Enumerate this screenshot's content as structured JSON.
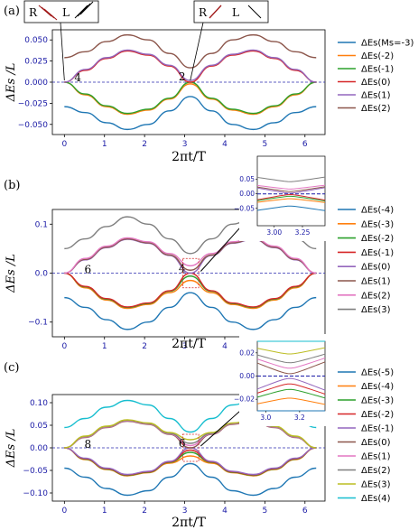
{
  "chart_data": [
    {
      "type": "line",
      "panel_label": "(a)",
      "xlabel": "2πt/T",
      "ylabel": "ΔEs /L",
      "xlim": [
        -0.3,
        6.5
      ],
      "ylim": [
        -0.062,
        0.062
      ],
      "xticks": [
        "0",
        "1",
        "2",
        "3",
        "4",
        "5",
        "6"
      ],
      "yticks": [
        "0.050",
        "0.025",
        "0.000",
        "−0.025",
        "−0.050"
      ],
      "ytick_values": [
        0.05,
        0.025,
        0,
        -0.025,
        -0.05
      ],
      "series": [
        {
          "name": "ΔEs(Ms=-3)",
          "color": "#1f77b4",
          "x": [
            0,
            0.52,
            1.05,
            1.57,
            2.09,
            2.62,
            3.14,
            3.67,
            4.19,
            4.71,
            5.24,
            5.76,
            6.28
          ],
          "values": [
            -0.029,
            -0.036,
            -0.048,
            -0.056,
            -0.05,
            -0.034,
            -0.017,
            -0.034,
            -0.05,
            -0.056,
            -0.048,
            -0.036,
            -0.029
          ]
        },
        {
          "name": "ΔEs(-2)",
          "color": "#ff7f0e",
          "x": [
            0,
            0.52,
            1.05,
            1.57,
            2.09,
            2.62,
            3.14,
            3.67,
            4.19,
            4.71,
            5.24,
            5.76,
            6.28
          ],
          "values": [
            0,
            -0.015,
            -0.029,
            -0.038,
            -0.033,
            -0.02,
            -0.002,
            -0.02,
            -0.033,
            -0.038,
            -0.029,
            -0.015,
            0
          ]
        },
        {
          "name": "ΔEs(-1)",
          "color": "#2ca02c",
          "x": [
            0,
            0.52,
            1.05,
            1.57,
            2.09,
            2.62,
            3.14,
            3.67,
            4.19,
            4.71,
            5.24,
            5.76,
            6.28
          ],
          "values": [
            0,
            -0.014,
            -0.028,
            -0.037,
            -0.032,
            -0.019,
            0,
            -0.019,
            -0.032,
            -0.037,
            -0.028,
            -0.014,
            0
          ]
        },
        {
          "name": "ΔEs(0)",
          "color": "#d62728",
          "x": [
            0,
            0.52,
            1.05,
            1.57,
            2.09,
            2.62,
            3.14,
            3.67,
            4.19,
            4.71,
            5.24,
            5.76,
            6.28
          ],
          "values": [
            0,
            0.014,
            0.028,
            0.037,
            0.032,
            0.019,
            0,
            0.019,
            0.032,
            0.037,
            0.028,
            0.014,
            0
          ]
        },
        {
          "name": "ΔEs(1)",
          "color": "#9467bd",
          "x": [
            0,
            0.52,
            1.05,
            1.57,
            2.09,
            2.62,
            3.14,
            3.67,
            4.19,
            4.71,
            5.24,
            5.76,
            6.28
          ],
          "values": [
            0,
            0.015,
            0.029,
            0.038,
            0.033,
            0.02,
            0.002,
            0.02,
            0.033,
            0.038,
            0.029,
            0.015,
            0
          ]
        },
        {
          "name": "ΔEs(2)",
          "color": "#8c564b",
          "x": [
            0,
            0.52,
            1.05,
            1.57,
            2.09,
            2.62,
            3.14,
            3.67,
            4.19,
            4.71,
            5.24,
            5.76,
            6.28
          ],
          "values": [
            0.029,
            0.036,
            0.048,
            0.056,
            0.05,
            0.034,
            0.017,
            0.034,
            0.05,
            0.056,
            0.048,
            0.036,
            0.029
          ]
        }
      ],
      "annotations": [
        {
          "text": "4",
          "x": 0.25,
          "y": 0.002
        },
        {
          "text": "2",
          "x": 2.85,
          "y": 0.003
        }
      ],
      "insets": [
        {
          "text_left": "R",
          "text_right": "L"
        },
        {
          "text_left": "R",
          "text_right": "L"
        }
      ]
    },
    {
      "type": "line",
      "panel_label": "(b)",
      "xlabel": "2πt/T",
      "ylabel": "ΔEs /L",
      "xlim": [
        -0.3,
        6.5
      ],
      "ylim": [
        -0.13,
        0.13
      ],
      "xticks": [
        "0",
        "1",
        "2",
        "3",
        "4",
        "5",
        "6"
      ],
      "yticks": [
        "0.1",
        "0.0",
        "−0.1"
      ],
      "ytick_values": [
        0.1,
        0,
        -0.1
      ],
      "series": [
        {
          "name": "ΔEs(-4)",
          "color": "#1f77b4",
          "x": [
            0,
            0.52,
            1.05,
            1.57,
            2.09,
            2.62,
            3.14,
            3.67,
            4.19,
            4.71,
            5.24,
            5.76,
            6.28
          ],
          "values": [
            -0.05,
            -0.07,
            -0.095,
            -0.115,
            -0.1,
            -0.07,
            -0.04,
            -0.07,
            -0.1,
            -0.115,
            -0.095,
            -0.07,
            -0.05
          ]
        },
        {
          "name": "ΔEs(-3)",
          "color": "#ff7f0e",
          "x": [
            0,
            0.52,
            1.05,
            1.57,
            2.09,
            2.62,
            3.14,
            3.67,
            4.19,
            4.71,
            5.24,
            5.76,
            6.28
          ],
          "values": [
            0,
            -0.03,
            -0.055,
            -0.072,
            -0.064,
            -0.04,
            -0.015,
            -0.04,
            -0.064,
            -0.072,
            -0.055,
            -0.03,
            0
          ]
        },
        {
          "name": "ΔEs(-2)",
          "color": "#2ca02c",
          "x": [
            0,
            0.52,
            1.05,
            1.57,
            2.09,
            2.62,
            3.14,
            3.67,
            4.19,
            4.71,
            5.24,
            5.76,
            6.28
          ],
          "values": [
            0,
            -0.028,
            -0.053,
            -0.07,
            -0.062,
            -0.037,
            -0.006,
            -0.037,
            -0.062,
            -0.07,
            -0.053,
            -0.028,
            0
          ]
        },
        {
          "name": "ΔEs(-1)",
          "color": "#d62728",
          "x": [
            0,
            0.52,
            1.05,
            1.57,
            2.09,
            2.62,
            3.14,
            3.67,
            4.19,
            4.71,
            5.24,
            5.76,
            6.28
          ],
          "values": [
            0,
            -0.027,
            -0.052,
            -0.069,
            -0.061,
            -0.036,
            0,
            -0.036,
            -0.061,
            -0.069,
            -0.052,
            -0.027,
            0
          ]
        },
        {
          "name": "ΔEs(0)",
          "color": "#9467bd",
          "x": [
            0,
            0.52,
            1.05,
            1.57,
            2.09,
            2.62,
            3.14,
            3.67,
            4.19,
            4.71,
            5.24,
            5.76,
            6.28
          ],
          "values": [
            0,
            0.027,
            0.052,
            0.069,
            0.061,
            0.036,
            0,
            0.036,
            0.061,
            0.069,
            0.052,
            0.027,
            0
          ]
        },
        {
          "name": "ΔEs(1)",
          "color": "#8c564b",
          "x": [
            0,
            0.52,
            1.05,
            1.57,
            2.09,
            2.62,
            3.14,
            3.67,
            4.19,
            4.71,
            5.24,
            5.76,
            6.28
          ],
          "values": [
            0,
            0.028,
            0.053,
            0.07,
            0.062,
            0.037,
            0.006,
            0.037,
            0.062,
            0.07,
            0.053,
            0.028,
            0
          ]
        },
        {
          "name": "ΔEs(2)",
          "color": "#e377c2",
          "x": [
            0,
            0.52,
            1.05,
            1.57,
            2.09,
            2.62,
            3.14,
            3.67,
            4.19,
            4.71,
            5.24,
            5.76,
            6.28
          ],
          "values": [
            0,
            0.03,
            0.055,
            0.072,
            0.064,
            0.04,
            0.015,
            0.04,
            0.064,
            0.072,
            0.055,
            0.03,
            0
          ]
        },
        {
          "name": "ΔEs(3)",
          "color": "#7f7f7f",
          "x": [
            0,
            0.52,
            1.05,
            1.57,
            2.09,
            2.62,
            3.14,
            3.67,
            4.19,
            4.71,
            5.24,
            5.76,
            6.28
          ],
          "values": [
            0.05,
            0.07,
            0.095,
            0.115,
            0.1,
            0.07,
            0.04,
            0.07,
            0.1,
            0.115,
            0.095,
            0.07,
            0.05
          ]
        }
      ],
      "annotations": [
        {
          "text": "6",
          "x": 0.5,
          "y": 0.002
        },
        {
          "text": "4",
          "x": 2.85,
          "y": 0.004
        }
      ],
      "inset": {
        "xticks": [
          "3.00",
          "3.25"
        ],
        "yticks": [
          "0.05",
          "0.00",
          "−0.05"
        ]
      }
    },
    {
      "type": "line",
      "panel_label": "(c)",
      "xlabel": "2πt/T",
      "ylabel": "ΔEs /L",
      "xlim": [
        -0.3,
        6.5
      ],
      "ylim": [
        -0.118,
        0.118
      ],
      "xticks": [
        "0",
        "1",
        "2",
        "3",
        "4",
        "5",
        "6"
      ],
      "yticks": [
        "0.10",
        "0.05",
        "0.00",
        "−0.05",
        "−0.10"
      ],
      "ytick_values": [
        0.1,
        0.05,
        0,
        -0.05,
        -0.1
      ],
      "series": [
        {
          "name": "ΔEs(-5)",
          "color": "#1f77b4",
          "x": [
            0,
            0.52,
            1.05,
            1.57,
            2.09,
            2.62,
            3.14,
            3.67,
            4.19,
            4.71,
            5.24,
            5.76,
            6.28
          ],
          "values": [
            -0.045,
            -0.065,
            -0.09,
            -0.105,
            -0.095,
            -0.065,
            -0.035,
            -0.065,
            -0.095,
            -0.105,
            -0.09,
            -0.065,
            -0.045
          ]
        },
        {
          "name": "ΔEs(-4)",
          "color": "#ff7f0e",
          "x": [
            0,
            0.52,
            1.05,
            1.57,
            2.09,
            2.62,
            3.14,
            3.67,
            4.19,
            4.71,
            5.24,
            5.76,
            6.28
          ],
          "values": [
            0,
            -0.026,
            -0.048,
            -0.062,
            -0.055,
            -0.034,
            -0.018,
            -0.034,
            -0.055,
            -0.062,
            -0.048,
            -0.026,
            0
          ]
        },
        {
          "name": "ΔEs(-3)",
          "color": "#2ca02c",
          "x": [
            0,
            0.52,
            1.05,
            1.57,
            2.09,
            2.62,
            3.14,
            3.67,
            4.19,
            4.71,
            5.24,
            5.76,
            6.28
          ],
          "values": [
            0,
            -0.025,
            -0.047,
            -0.061,
            -0.054,
            -0.032,
            -0.01,
            -0.032,
            -0.054,
            -0.061,
            -0.047,
            -0.025,
            0
          ]
        },
        {
          "name": "ΔEs(-2)",
          "color": "#d62728",
          "x": [
            0,
            0.52,
            1.05,
            1.57,
            2.09,
            2.62,
            3.14,
            3.67,
            4.19,
            4.71,
            5.24,
            5.76,
            6.28
          ],
          "values": [
            0,
            -0.024,
            -0.046,
            -0.06,
            -0.053,
            -0.031,
            -0.005,
            -0.031,
            -0.053,
            -0.06,
            -0.046,
            -0.024,
            0
          ]
        },
        {
          "name": "ΔEs(-1)",
          "color": "#9467bd",
          "x": [
            0,
            0.52,
            1.05,
            1.57,
            2.09,
            2.62,
            3.14,
            3.67,
            4.19,
            4.71,
            5.24,
            5.76,
            6.28
          ],
          "values": [
            0,
            -0.023,
            -0.045,
            -0.059,
            -0.052,
            -0.03,
            0,
            -0.03,
            -0.052,
            -0.059,
            -0.045,
            -0.023,
            0
          ]
        },
        {
          "name": "ΔEs(0)",
          "color": "#8c564b",
          "x": [
            0,
            0.52,
            1.05,
            1.57,
            2.09,
            2.62,
            3.14,
            3.67,
            4.19,
            4.71,
            5.24,
            5.76,
            6.28
          ],
          "values": [
            0,
            0.023,
            0.045,
            0.059,
            0.052,
            0.03,
            0,
            0.03,
            0.052,
            0.059,
            0.045,
            0.023,
            0
          ]
        },
        {
          "name": "ΔEs(1)",
          "color": "#e377c2",
          "x": [
            0,
            0.52,
            1.05,
            1.57,
            2.09,
            2.62,
            3.14,
            3.67,
            4.19,
            4.71,
            5.24,
            5.76,
            6.28
          ],
          "values": [
            0,
            0.024,
            0.046,
            0.06,
            0.053,
            0.031,
            0.005,
            0.031,
            0.053,
            0.06,
            0.046,
            0.024,
            0
          ]
        },
        {
          "name": "ΔEs(2)",
          "color": "#7f7f7f",
          "x": [
            0,
            0.52,
            1.05,
            1.57,
            2.09,
            2.62,
            3.14,
            3.67,
            4.19,
            4.71,
            5.24,
            5.76,
            6.28
          ],
          "values": [
            0,
            0.025,
            0.047,
            0.061,
            0.054,
            0.032,
            0.01,
            0.032,
            0.054,
            0.061,
            0.047,
            0.025,
            0
          ]
        },
        {
          "name": "ΔEs(3)",
          "color": "#bcbd22",
          "x": [
            0,
            0.52,
            1.05,
            1.57,
            2.09,
            2.62,
            3.14,
            3.67,
            4.19,
            4.71,
            5.24,
            5.76,
            6.28
          ],
          "values": [
            0,
            0.026,
            0.048,
            0.062,
            0.055,
            0.034,
            0.018,
            0.034,
            0.055,
            0.062,
            0.048,
            0.026,
            0
          ]
        },
        {
          "name": "ΔEs(4)",
          "color": "#17becf",
          "x": [
            0,
            0.52,
            1.05,
            1.57,
            2.09,
            2.62,
            3.14,
            3.67,
            4.19,
            4.71,
            5.24,
            5.76,
            6.28
          ],
          "values": [
            0.045,
            0.065,
            0.09,
            0.105,
            0.095,
            0.065,
            0.035,
            0.065,
            0.095,
            0.105,
            0.09,
            0.065,
            0.045
          ]
        }
      ],
      "annotations": [
        {
          "text": "8",
          "x": 0.5,
          "y": 0.002
        },
        {
          "text": "6",
          "x": 2.85,
          "y": 0.004
        }
      ],
      "inset": {
        "xticks": [
          "3.0",
          "3.2"
        ],
        "yticks": [
          "0.02",
          "0.00",
          "−0.02"
        ]
      }
    }
  ]
}
